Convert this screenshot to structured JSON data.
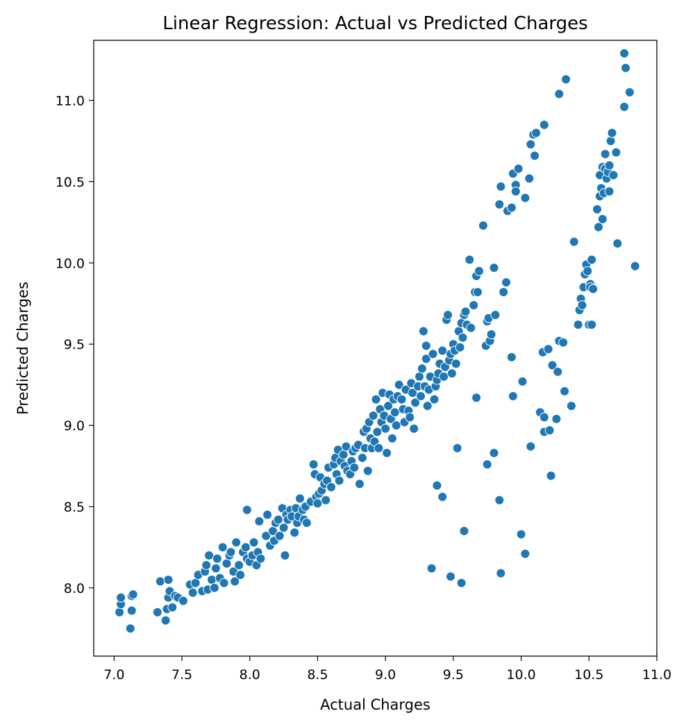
{
  "chart_data": {
    "type": "scatter",
    "title": "Linear Regression: Actual vs Predicted Charges",
    "xlabel": "Actual Charges",
    "ylabel": "Predicted Charges",
    "xlim": [
      6.85,
      11.0
    ],
    "ylim": [
      7.58,
      11.37
    ],
    "xticks": [
      "7.0",
      "7.5",
      "8.0",
      "8.5",
      "9.0",
      "9.5",
      "10.0",
      "10.5",
      "11.0"
    ],
    "yticks": [
      "8.0",
      "8.5",
      "9.0",
      "9.5",
      "10.0",
      "10.5",
      "11.0"
    ],
    "grid": false,
    "marker_color": "#1f77b4",
    "points": [
      [
        7.04,
        7.85
      ],
      [
        7.05,
        7.9
      ],
      [
        7.05,
        7.94
      ],
      [
        7.12,
        7.75
      ],
      [
        7.13,
        7.86
      ],
      [
        7.13,
        7.95
      ],
      [
        7.14,
        7.96
      ],
      [
        7.32,
        7.85
      ],
      [
        7.34,
        8.04
      ],
      [
        7.38,
        7.8
      ],
      [
        7.39,
        7.87
      ],
      [
        7.4,
        7.94
      ],
      [
        7.4,
        8.05
      ],
      [
        7.41,
        7.98
      ],
      [
        7.43,
        7.88
      ],
      [
        7.45,
        7.95
      ],
      [
        7.47,
        7.94
      ],
      [
        7.51,
        7.92
      ],
      [
        7.56,
        8.02
      ],
      [
        7.58,
        7.97
      ],
      [
        7.6,
        8.03
      ],
      [
        7.62,
        8.08
      ],
      [
        7.65,
        7.98
      ],
      [
        7.67,
        8.1
      ],
      [
        7.68,
        8.14
      ],
      [
        7.69,
        7.99
      ],
      [
        7.7,
        8.2
      ],
      [
        7.72,
        8.05
      ],
      [
        7.74,
        8.0
      ],
      [
        7.75,
        8.12
      ],
      [
        7.76,
        8.18
      ],
      [
        7.78,
        8.06
      ],
      [
        7.8,
        8.25
      ],
      [
        7.81,
        8.03
      ],
      [
        7.83,
        8.15
      ],
      [
        7.85,
        8.2
      ],
      [
        7.86,
        8.22
      ],
      [
        7.88,
        8.1
      ],
      [
        7.89,
        8.04
      ],
      [
        7.9,
        8.28
      ],
      [
        7.92,
        8.14
      ],
      [
        7.93,
        8.08
      ],
      [
        7.95,
        8.22
      ],
      [
        7.97,
        8.25
      ],
      [
        7.98,
        8.18
      ],
      [
        7.98,
        8.48
      ],
      [
        8.0,
        8.16
      ],
      [
        8.02,
        8.2
      ],
      [
        8.03,
        8.28
      ],
      [
        8.05,
        8.14
      ],
      [
        8.06,
        8.22
      ],
      [
        8.07,
        8.41
      ],
      [
        8.08,
        8.18
      ],
      [
        8.12,
        8.32
      ],
      [
        8.13,
        8.45
      ],
      [
        8.15,
        8.26
      ],
      [
        8.17,
        8.35
      ],
      [
        8.18,
        8.29
      ],
      [
        8.19,
        8.4
      ],
      [
        8.21,
        8.42
      ],
      [
        8.22,
        8.32
      ],
      [
        8.24,
        8.49
      ],
      [
        8.25,
        8.37
      ],
      [
        8.26,
        8.2
      ],
      [
        8.27,
        8.45
      ],
      [
        8.28,
        8.42
      ],
      [
        8.3,
        8.48
      ],
      [
        8.31,
        8.44
      ],
      [
        8.33,
        8.34
      ],
      [
        8.34,
        8.49
      ],
      [
        8.35,
        8.4
      ],
      [
        8.36,
        8.44
      ],
      [
        8.37,
        8.55
      ],
      [
        8.39,
        8.48
      ],
      [
        8.4,
        8.42
      ],
      [
        8.41,
        8.5
      ],
      [
        8.42,
        8.4
      ],
      [
        8.45,
        8.53
      ],
      [
        8.47,
        8.76
      ],
      [
        8.48,
        8.7
      ],
      [
        8.49,
        8.56
      ],
      [
        8.5,
        8.52
      ],
      [
        8.51,
        8.58
      ],
      [
        8.52,
        8.68
      ],
      [
        8.53,
        8.6
      ],
      [
        8.55,
        8.64
      ],
      [
        8.56,
        8.54
      ],
      [
        8.57,
        8.66
      ],
      [
        8.58,
        8.74
      ],
      [
        8.6,
        8.62
      ],
      [
        8.62,
        8.76
      ],
      [
        8.63,
        8.8
      ],
      [
        8.64,
        8.7
      ],
      [
        8.65,
        8.85
      ],
      [
        8.66,
        8.66
      ],
      [
        8.67,
        8.78
      ],
      [
        8.69,
        8.82
      ],
      [
        8.7,
        8.75
      ],
      [
        8.71,
        8.87
      ],
      [
        8.72,
        8.72
      ],
      [
        8.74,
        8.7
      ],
      [
        8.75,
        8.78
      ],
      [
        8.76,
        8.84
      ],
      [
        8.77,
        8.74
      ],
      [
        8.78,
        8.86
      ],
      [
        8.8,
        8.88
      ],
      [
        8.81,
        8.64
      ],
      [
        8.83,
        8.8
      ],
      [
        8.84,
        8.96
      ],
      [
        8.85,
        8.86
      ],
      [
        8.86,
        8.98
      ],
      [
        8.87,
        8.72
      ],
      [
        8.88,
        9.02
      ],
      [
        8.89,
        8.92
      ],
      [
        8.9,
        8.86
      ],
      [
        8.91,
        9.06
      ],
      [
        8.92,
        8.9
      ],
      [
        8.93,
        9.16
      ],
      [
        8.94,
        8.96
      ],
      [
        8.95,
        8.86
      ],
      [
        8.96,
        9.1
      ],
      [
        8.97,
        9.02
      ],
      [
        8.98,
        9.2
      ],
      [
        8.99,
        9.06
      ],
      [
        9.0,
        8.98
      ],
      [
        9.01,
        8.83
      ],
      [
        9.02,
        9.12
      ],
      [
        9.03,
        9.19
      ],
      [
        9.04,
        9.04
      ],
      [
        9.05,
        8.92
      ],
      [
        9.06,
        9.16
      ],
      [
        9.07,
        9.08
      ],
      [
        9.08,
        9.0
      ],
      [
        9.09,
        9.18
      ],
      [
        9.1,
        9.25
      ],
      [
        9.12,
        9.16
      ],
      [
        9.13,
        9.1
      ],
      [
        9.14,
        9.02
      ],
      [
        9.15,
        9.22
      ],
      [
        9.17,
        9.09
      ],
      [
        9.18,
        9.05
      ],
      [
        9.19,
        9.26
      ],
      [
        9.2,
        9.2
      ],
      [
        9.21,
        8.98
      ],
      [
        9.22,
        9.14
      ],
      [
        9.24,
        9.24
      ],
      [
        9.25,
        9.3
      ],
      [
        9.26,
        9.18
      ],
      [
        9.27,
        9.35
      ],
      [
        9.28,
        9.58
      ],
      [
        9.29,
        9.24
      ],
      [
        9.3,
        9.49
      ],
      [
        9.3,
        9.41
      ],
      [
        9.31,
        9.12
      ],
      [
        9.32,
        9.22
      ],
      [
        9.33,
        9.3
      ],
      [
        9.35,
        9.44
      ],
      [
        9.36,
        9.16
      ],
      [
        9.37,
        9.24
      ],
      [
        9.38,
        9.28
      ],
      [
        9.39,
        9.32
      ],
      [
        9.4,
        9.38
      ],
      [
        9.42,
        9.46
      ],
      [
        9.43,
        9.3
      ],
      [
        9.44,
        9.36
      ],
      [
        9.45,
        9.65
      ],
      [
        9.46,
        9.68
      ],
      [
        9.47,
        9.4
      ],
      [
        9.48,
        9.44
      ],
      [
        9.49,
        9.32
      ],
      [
        9.5,
        9.5
      ],
      [
        9.51,
        9.46
      ],
      [
        9.52,
        9.38
      ],
      [
        9.54,
        9.58
      ],
      [
        9.55,
        9.48
      ],
      [
        9.56,
        9.63
      ],
      [
        9.57,
        9.54
      ],
      [
        9.58,
        9.68
      ],
      [
        9.59,
        9.7
      ],
      [
        9.6,
        9.62
      ],
      [
        9.62,
        10.02
      ],
      [
        9.63,
        9.6
      ],
      [
        9.65,
        9.74
      ],
      [
        9.66,
        9.82
      ],
      [
        9.67,
        9.92
      ],
      [
        9.68,
        9.82
      ],
      [
        9.69,
        9.95
      ],
      [
        9.72,
        10.23
      ],
      [
        9.74,
        9.49
      ],
      [
        9.75,
        9.64
      ],
      [
        9.76,
        9.66
      ],
      [
        9.77,
        9.52
      ],
      [
        9.78,
        9.56
      ],
      [
        9.8,
        9.97
      ],
      [
        9.81,
        9.68
      ],
      [
        9.84,
        10.36
      ],
      [
        9.85,
        10.47
      ],
      [
        9.87,
        9.82
      ],
      [
        9.89,
        9.88
      ],
      [
        9.9,
        10.32
      ],
      [
        9.93,
        10.34
      ],
      [
        9.94,
        10.55
      ],
      [
        9.96,
        10.48
      ],
      [
        9.96,
        10.44
      ],
      [
        9.98,
        10.58
      ],
      [
        10.03,
        10.4
      ],
      [
        10.06,
        10.52
      ],
      [
        10.07,
        10.73
      ],
      [
        10.09,
        10.79
      ],
      [
        10.1,
        10.66
      ],
      [
        10.11,
        10.8
      ],
      [
        10.17,
        10.85
      ],
      [
        10.28,
        11.04
      ],
      [
        10.33,
        11.13
      ],
      [
        9.34,
        8.12
      ],
      [
        9.38,
        8.63
      ],
      [
        9.42,
        8.56
      ],
      [
        9.48,
        8.07
      ],
      [
        9.53,
        8.86
      ],
      [
        9.56,
        8.03
      ],
      [
        9.58,
        8.35
      ],
      [
        9.67,
        9.17
      ],
      [
        9.75,
        8.76
      ],
      [
        9.8,
        8.83
      ],
      [
        9.84,
        8.54
      ],
      [
        9.85,
        8.09
      ],
      [
        9.93,
        9.42
      ],
      [
        9.94,
        9.18
      ],
      [
        10.0,
        8.33
      ],
      [
        10.01,
        9.27
      ],
      [
        10.03,
        8.21
      ],
      [
        10.07,
        8.87
      ],
      [
        10.14,
        9.08
      ],
      [
        10.16,
        9.45
      ],
      [
        10.17,
        8.96
      ],
      [
        10.17,
        9.05
      ],
      [
        10.2,
        9.47
      ],
      [
        10.21,
        8.97
      ],
      [
        10.22,
        8.69
      ],
      [
        10.23,
        9.37
      ],
      [
        10.26,
        9.04
      ],
      [
        10.27,
        9.33
      ],
      [
        10.28,
        9.52
      ],
      [
        10.31,
        9.51
      ],
      [
        10.32,
        9.21
      ],
      [
        10.37,
        9.12
      ],
      [
        10.39,
        10.13
      ],
      [
        10.42,
        9.62
      ],
      [
        10.43,
        9.71
      ],
      [
        10.44,
        9.78
      ],
      [
        10.45,
        9.74
      ],
      [
        10.46,
        9.85
      ],
      [
        10.47,
        9.93
      ],
      [
        10.48,
        9.99
      ],
      [
        10.49,
        9.95
      ],
      [
        10.5,
        9.62
      ],
      [
        10.51,
        9.87
      ],
      [
        10.51,
        9.85
      ],
      [
        10.52,
        10.02
      ],
      [
        10.52,
        9.62
      ],
      [
        10.53,
        9.84
      ],
      [
        10.56,
        10.33
      ],
      [
        10.57,
        10.22
      ],
      [
        10.58,
        10.41
      ],
      [
        10.58,
        10.54
      ],
      [
        10.59,
        10.46
      ],
      [
        10.6,
        10.27
      ],
      [
        10.6,
        10.59
      ],
      [
        10.61,
        10.43
      ],
      [
        10.62,
        10.58
      ],
      [
        10.62,
        10.67
      ],
      [
        10.63,
        10.52
      ],
      [
        10.64,
        10.56
      ],
      [
        10.65,
        10.44
      ],
      [
        10.65,
        10.6
      ],
      [
        10.66,
        10.75
      ],
      [
        10.67,
        10.8
      ],
      [
        10.68,
        10.54
      ],
      [
        10.7,
        10.68
      ],
      [
        10.71,
        10.12
      ],
      [
        10.76,
        11.29
      ],
      [
        10.76,
        10.96
      ],
      [
        10.77,
        11.2
      ],
      [
        10.8,
        11.05
      ],
      [
        10.84,
        9.98
      ]
    ]
  }
}
